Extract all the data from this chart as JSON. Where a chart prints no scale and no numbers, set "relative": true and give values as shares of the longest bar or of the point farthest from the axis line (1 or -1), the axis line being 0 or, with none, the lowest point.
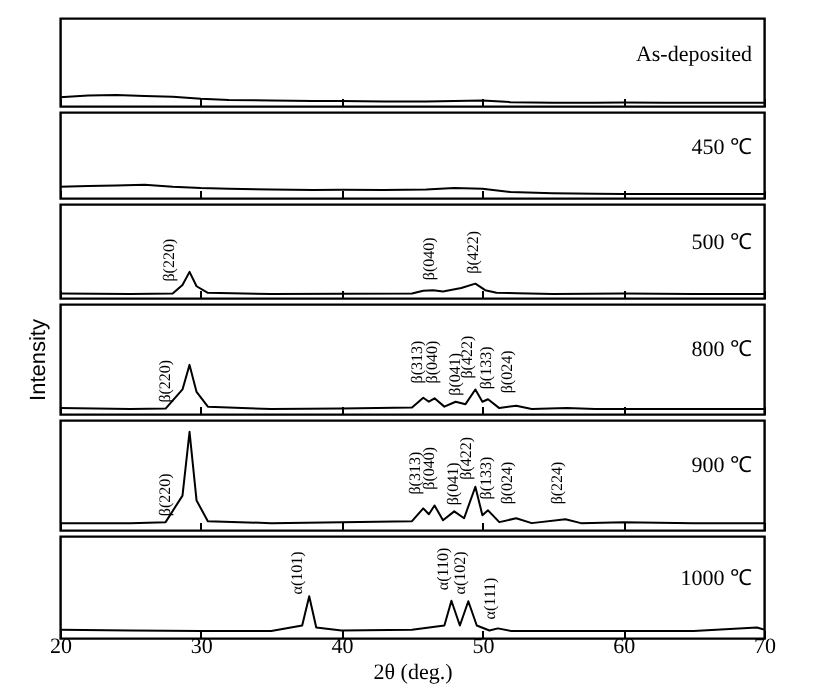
{
  "chart_data": [
    {
      "type": "line",
      "relative": true,
      "color": "#000000",
      "tick_labels": false,
      "xlim": [
        20,
        70
      ],
      "xticks": [
        20,
        30,
        40,
        50,
        60,
        70
      ],
      "x": [
        20,
        22,
        24,
        26,
        28,
        30,
        32,
        35,
        38,
        40,
        43,
        46,
        48,
        50,
        52,
        55,
        58,
        60,
        63,
        66,
        70
      ],
      "values": [
        0.8,
        0.95,
        1,
        0.9,
        0.85,
        0.65,
        0.55,
        0.5,
        0.45,
        0.45,
        0.4,
        0.42,
        0.45,
        0.5,
        0.35,
        0.3,
        0.3,
        0.32,
        0.3,
        0.3,
        0.3
      ],
      "annotations": [
        "As-deposited"
      ]
    },
    {
      "type": "line",
      "relative": true,
      "color": "#000000",
      "tick_labels": false,
      "xlim": [
        20,
        70
      ],
      "xticks": [
        20,
        30,
        40,
        50,
        60,
        70
      ],
      "x": [
        20,
        22,
        24,
        26,
        28,
        30,
        32,
        35,
        38,
        40,
        43,
        46,
        48,
        50,
        52,
        55,
        58,
        60,
        63,
        66,
        70
      ],
      "values": [
        0.85,
        0.9,
        0.95,
        1,
        0.85,
        0.75,
        0.7,
        0.65,
        0.6,
        0.62,
        0.6,
        0.65,
        0.75,
        0.7,
        0.45,
        0.35,
        0.32,
        0.3,
        0.3,
        0.3,
        0.3
      ],
      "annotations": [
        "450 ℃"
      ]
    },
    {
      "type": "line",
      "relative": true,
      "color": "#000000",
      "tick_labels": false,
      "xlim": [
        20,
        70
      ],
      "xticks": [
        20,
        30,
        40,
        50,
        60,
        70
      ],
      "x": [
        20,
        25,
        28,
        28.7,
        29.2,
        29.7,
        30.5,
        35,
        40,
        45,
        45.8,
        46.5,
        47.2,
        48.5,
        49.5,
        50.2,
        51,
        52.5,
        55,
        60,
        65,
        70
      ],
      "values": [
        0.17,
        0.15,
        0.17,
        0.5,
        1,
        0.45,
        0.2,
        0.15,
        0.16,
        0.17,
        0.28,
        0.3,
        0.25,
        0.38,
        0.55,
        0.3,
        0.2,
        0.18,
        0.15,
        0.17,
        0.15,
        0.15
      ],
      "annotations": [
        "500 ℃",
        {
          "text": "β(220)",
          "x": 27.8,
          "y": 0.4
        },
        {
          "text": "β(040)",
          "x": 46.3,
          "y": 0.45
        },
        {
          "text": "β(422)",
          "x": 49.4,
          "y": 0.7
        }
      ]
    },
    {
      "type": "line",
      "relative": true,
      "color": "#000000",
      "tick_labels": false,
      "xlim": [
        20,
        70
      ],
      "xticks": [
        20,
        30,
        40,
        50,
        60,
        70
      ],
      "ylabel": "Intensity",
      "x": [
        20,
        25,
        27.5,
        28.7,
        29.2,
        29.7,
        30.5,
        35,
        40,
        45,
        45.8,
        46.2,
        46.6,
        47.3,
        48.1,
        48.8,
        49.5,
        50.0,
        50.4,
        51.2,
        52.4,
        53.5,
        56,
        58,
        60,
        65,
        70
      ],
      "values": [
        0.12,
        0.1,
        0.11,
        0.5,
        1,
        0.45,
        0.15,
        0.1,
        0.11,
        0.13,
        0.33,
        0.25,
        0.32,
        0.15,
        0.25,
        0.2,
        0.5,
        0.25,
        0.3,
        0.12,
        0.17,
        0.1,
        0.12,
        0.1,
        0.1,
        0.1,
        0.1
      ],
      "annotations": [
        "800 ℃",
        {
          "text": "β(220)",
          "x": 27.5,
          "y": 0.11
        },
        {
          "text": "β(313)",
          "x": 45.4,
          "y": 0.5
        },
        {
          "text": "β(040)",
          "x": 46.5,
          "y": 0.5
        },
        {
          "text": "β(041)",
          "x": 48.1,
          "y": 0.25
        },
        {
          "text": "β(422)",
          "x": 49.0,
          "y": 0.6
        },
        {
          "text": "β(133)",
          "x": 50.3,
          "y": 0.38
        },
        {
          "text": "β(024)",
          "x": 51.8,
          "y": 0.3
        }
      ]
    },
    {
      "type": "line",
      "relative": true,
      "color": "#000000",
      "tick_labels": false,
      "xlim": [
        20,
        70
      ],
      "xticks": [
        20,
        30,
        40,
        50,
        60,
        70
      ],
      "x": [
        20,
        25,
        27.5,
        28.7,
        29.2,
        29.7,
        30.5,
        35,
        40,
        45,
        45.8,
        46.2,
        46.6,
        47.2,
        48.0,
        48.7,
        49.5,
        50.0,
        50.4,
        51.2,
        52.4,
        53.5,
        55.9,
        57,
        60,
        65,
        70
      ],
      "values": [
        0.07,
        0.07,
        0.08,
        0.35,
        1,
        0.3,
        0.09,
        0.07,
        0.08,
        0.09,
        0.22,
        0.16,
        0.25,
        0.1,
        0.19,
        0.12,
        0.44,
        0.15,
        0.2,
        0.08,
        0.12,
        0.07,
        0.11,
        0.07,
        0.08,
        0.07,
        0.07
      ],
      "annotations": [
        "900 ℃",
        {
          "text": "β(220)",
          "x": 27.5,
          "y": 0.08
        },
        {
          "text": "β(313)",
          "x": 45.3,
          "y": 0.3
        },
        {
          "text": "β(040)",
          "x": 46.3,
          "y": 0.35
        },
        {
          "text": "β(041)",
          "x": 48.0,
          "y": 0.19
        },
        {
          "text": "β(422)",
          "x": 48.9,
          "y": 0.45
        },
        {
          "text": "β(133)",
          "x": 50.3,
          "y": 0.25
        },
        {
          "text": "β(024)",
          "x": 51.8,
          "y": 0.2
        },
        {
          "text": "β(224)",
          "x": 55.4,
          "y": 0.2
        }
      ]
    },
    {
      "type": "line",
      "relative": true,
      "color": "#000000",
      "tick_labels": "x",
      "xlim": [
        20,
        70
      ],
      "xticks": [
        20,
        30,
        40,
        50,
        60,
        70
      ],
      "xlabel": "2θ (deg.)",
      "x": [
        20,
        25,
        30,
        35,
        37.2,
        37.7,
        38.2,
        40,
        45,
        47.3,
        47.8,
        48.4,
        49.0,
        49.6,
        50.5,
        51.1,
        52,
        55,
        60,
        65,
        69.5,
        70
      ],
      "values": [
        0.2,
        0.18,
        0.17,
        0.17,
        0.3,
        1,
        0.25,
        0.18,
        0.2,
        0.3,
        0.89,
        0.3,
        0.88,
        0.3,
        0.18,
        0.23,
        0.17,
        0.17,
        0.17,
        0.17,
        0.25,
        0.2
      ],
      "annotations": [
        "1000 ℃",
        {
          "text": "α(101)",
          "x": 36.9,
          "y": 0.9
        },
        {
          "text": "α(110)",
          "x": 47.3,
          "y": 1.0
        },
        {
          "text": "α(102)",
          "x": 48.5,
          "y": 0.9
        },
        {
          "text": "α(111)",
          "x": 50.6,
          "y": 0.3
        }
      ]
    }
  ]
}
